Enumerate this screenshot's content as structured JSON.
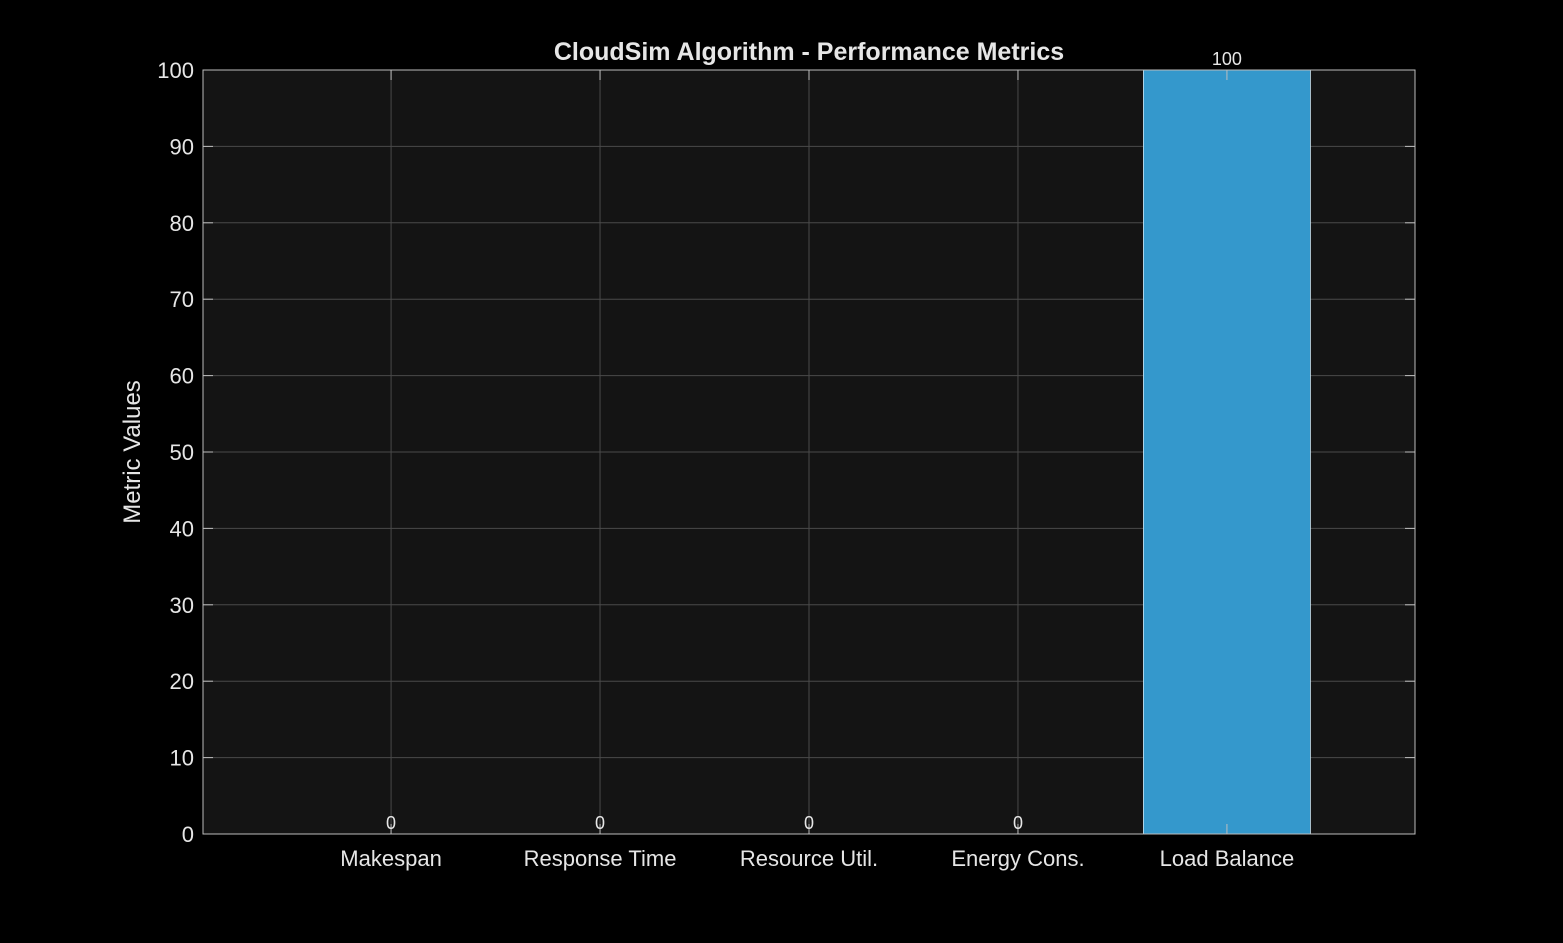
{
  "chart_data": {
    "type": "bar",
    "title": "CloudSim Algorithm - Performance Metrics",
    "xlabel": "",
    "ylabel": "Metric Values",
    "categories": [
      "Makespan",
      "Response Time",
      "Resource Util.",
      "Energy Cons.",
      "Load Balance"
    ],
    "values": [
      0,
      0,
      0,
      0,
      100
    ],
    "value_labels": [
      "0",
      "0",
      "0",
      "0",
      "100"
    ],
    "ylim": [
      0,
      100
    ],
    "yticks": [
      0,
      10,
      20,
      30,
      40,
      50,
      60,
      70,
      80,
      90,
      100
    ],
    "grid": true,
    "bar_color": "#3498cc",
    "background_color": "#000000",
    "plot_background_color": "#141414",
    "text_color": "#e6e6e6"
  }
}
